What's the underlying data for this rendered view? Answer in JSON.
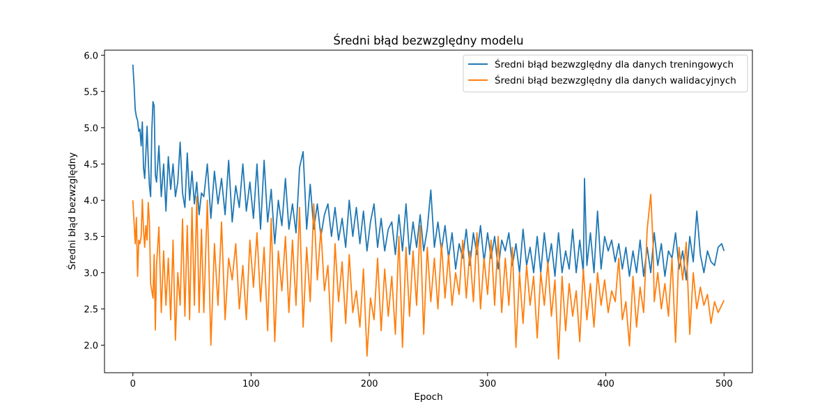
{
  "chart_data": {
    "type": "line",
    "title": "Średni błąd bezwzględny modelu",
    "xlabel": "Epoch",
    "ylabel": "Średni błąd bezwzględny",
    "xlim": [
      -24,
      524
    ],
    "ylim": [
      1.62,
      6.07
    ],
    "xticks": [
      0,
      100,
      200,
      300,
      400,
      500
    ],
    "yticks": [
      2.0,
      2.5,
      3.0,
      3.5,
      4.0,
      4.5,
      5.0,
      5.5,
      6.0
    ],
    "grid": false,
    "legend_position": "top-right",
    "series": [
      {
        "name": "Średni błąd bezwzględny dla danych treningowych",
        "color": "#1f77b4",
        "x": [
          0,
          1,
          2,
          3,
          4,
          5,
          6,
          7,
          8,
          9,
          10,
          11,
          12,
          13,
          14,
          15,
          16,
          17,
          18,
          19,
          20,
          22,
          24,
          26,
          28,
          30,
          32,
          34,
          36,
          38,
          40,
          42,
          44,
          46,
          48,
          50,
          52,
          54,
          56,
          58,
          60,
          63,
          66,
          69,
          72,
          75,
          78,
          81,
          84,
          87,
          90,
          93,
          96,
          99,
          102,
          105,
          108,
          111,
          114,
          117,
          120,
          123,
          126,
          129,
          132,
          135,
          138,
          141,
          144,
          147,
          150,
          153,
          156,
          159,
          162,
          165,
          168,
          171,
          174,
          177,
          180,
          183,
          186,
          189,
          192,
          195,
          198,
          201,
          204,
          207,
          210,
          213,
          216,
          219,
          222,
          225,
          228,
          231,
          234,
          237,
          240,
          243,
          246,
          249,
          252,
          255,
          258,
          261,
          264,
          267,
          270,
          273,
          276,
          279,
          282,
          285,
          288,
          291,
          294,
          297,
          300,
          303,
          306,
          309,
          312,
          315,
          318,
          321,
          324,
          327,
          330,
          333,
          336,
          339,
          342,
          345,
          348,
          351,
          354,
          357,
          360,
          363,
          366,
          369,
          372,
          375,
          378,
          381,
          382,
          384,
          387,
          390,
          393,
          396,
          399,
          402,
          405,
          408,
          411,
          414,
          417,
          420,
          423,
          426,
          429,
          432,
          435,
          438,
          441,
          444,
          447,
          450,
          453,
          456,
          459,
          462,
          465,
          468,
          471,
          474,
          477,
          480,
          483,
          486,
          489,
          492,
          495,
          498,
          500
        ],
        "values": [
          5.87,
          5.6,
          5.25,
          5.15,
          5.1,
          4.95,
          4.98,
          4.75,
          5.08,
          4.45,
          4.3,
          4.65,
          5.02,
          4.55,
          4.2,
          4.05,
          4.95,
          5.36,
          5.3,
          4.35,
          4.25,
          4.75,
          4.05,
          4.5,
          3.85,
          4.6,
          4.15,
          4.5,
          4.05,
          4.25,
          4.8,
          4.1,
          3.9,
          4.65,
          4.0,
          4.4,
          3.95,
          4.25,
          3.8,
          4.1,
          4.05,
          4.5,
          3.75,
          4.4,
          3.95,
          4.3,
          3.8,
          4.55,
          3.7,
          4.2,
          3.9,
          4.5,
          3.85,
          4.25,
          3.75,
          4.5,
          3.6,
          4.55,
          3.7,
          4.15,
          3.4,
          4.0,
          3.65,
          4.3,
          3.6,
          3.95,
          3.55,
          4.45,
          4.67,
          3.6,
          4.22,
          3.6,
          3.95,
          3.5,
          3.8,
          3.95,
          3.5,
          3.9,
          3.45,
          3.75,
          3.35,
          4.0,
          3.5,
          3.9,
          3.4,
          3.85,
          3.3,
          3.7,
          3.95,
          3.35,
          3.75,
          3.3,
          3.6,
          3.7,
          3.25,
          3.8,
          3.3,
          3.95,
          3.25,
          3.7,
          3.35,
          3.8,
          3.3,
          3.6,
          4.14,
          3.35,
          3.7,
          3.3,
          3.65,
          3.2,
          3.55,
          3.05,
          3.4,
          3.2,
          3.6,
          3.1,
          3.55,
          3.25,
          3.65,
          3.15,
          3.55,
          3.2,
          3.5,
          3.05,
          3.45,
          3.3,
          3.55,
          3.1,
          3.4,
          3.0,
          3.6,
          3.1,
          3.35,
          3.0,
          3.5,
          3.0,
          3.55,
          3.1,
          3.4,
          2.95,
          3.55,
          3.0,
          3.3,
          3.05,
          3.6,
          3.0,
          3.45,
          3.0,
          4.3,
          3.1,
          3.55,
          3.0,
          3.85,
          3.05,
          3.5,
          3.3,
          3.45,
          3.15,
          3.4,
          3.05,
          3.35,
          2.95,
          3.3,
          3.0,
          3.45,
          2.95,
          3.35,
          3.0,
          3.55,
          3.1,
          3.4,
          2.95,
          3.3,
          3.2,
          3.55,
          3.05,
          3.3,
          2.9,
          3.5,
          3.15,
          3.85,
          3.25,
          3.0,
          3.3,
          3.15,
          3.1,
          3.35,
          3.4,
          3.3
        ]
      },
      {
        "name": "Średni błąd bezwzględny dla danych walidacyjnych",
        "color": "#ff7f0e",
        "x": [
          0,
          1,
          2,
          3,
          4,
          5,
          6,
          7,
          8,
          9,
          10,
          11,
          12,
          13,
          14,
          15,
          16,
          17,
          18,
          19,
          20,
          22,
          24,
          26,
          28,
          30,
          32,
          34,
          36,
          38,
          40,
          42,
          44,
          46,
          48,
          50,
          52,
          54,
          56,
          58,
          60,
          63,
          66,
          69,
          72,
          75,
          78,
          81,
          84,
          87,
          90,
          93,
          96,
          99,
          102,
          105,
          108,
          111,
          114,
          117,
          120,
          123,
          126,
          129,
          132,
          135,
          138,
          141,
          144,
          147,
          150,
          153,
          156,
          159,
          162,
          165,
          168,
          171,
          174,
          177,
          180,
          183,
          186,
          189,
          192,
          195,
          198,
          201,
          204,
          207,
          210,
          213,
          216,
          219,
          222,
          225,
          228,
          231,
          234,
          237,
          240,
          243,
          246,
          249,
          252,
          255,
          258,
          261,
          264,
          267,
          270,
          273,
          276,
          279,
          282,
          285,
          288,
          291,
          294,
          297,
          300,
          303,
          306,
          309,
          312,
          315,
          318,
          321,
          324,
          327,
          330,
          333,
          336,
          339,
          342,
          345,
          348,
          351,
          354,
          357,
          360,
          363,
          366,
          369,
          372,
          375,
          378,
          381,
          384,
          387,
          390,
          393,
          396,
          399,
          402,
          405,
          408,
          411,
          414,
          417,
          420,
          423,
          426,
          429,
          432,
          435,
          438,
          440,
          441,
          444,
          447,
          450,
          453,
          456,
          459,
          462,
          465,
          468,
          471,
          474,
          477,
          480,
          483,
          486,
          489,
          492,
          495,
          498,
          500
        ],
        "values": [
          4.0,
          3.7,
          3.4,
          3.76,
          2.95,
          3.45,
          3.4,
          3.5,
          4.01,
          3.6,
          3.35,
          3.65,
          3.45,
          3.97,
          3.7,
          2.85,
          2.75,
          2.65,
          3.25,
          2.21,
          3.1,
          3.63,
          2.45,
          3.3,
          2.55,
          3.2,
          2.35,
          3.45,
          2.07,
          3.0,
          2.55,
          3.74,
          2.4,
          3.65,
          2.35,
          3.9,
          2.55,
          4.05,
          2.45,
          3.6,
          2.45,
          4.0,
          2.0,
          3.4,
          2.55,
          3.7,
          2.35,
          3.2,
          2.9,
          3.4,
          2.5,
          3.1,
          2.35,
          3.45,
          2.8,
          3.55,
          2.6,
          3.35,
          2.2,
          3.75,
          2.05,
          3.3,
          2.75,
          3.5,
          2.45,
          3.45,
          2.55,
          3.9,
          2.25,
          3.35,
          2.6,
          3.95,
          2.9,
          3.6,
          2.75,
          3.1,
          2.05,
          3.4,
          2.6,
          3.15,
          2.3,
          3.25,
          2.45,
          2.75,
          2.25,
          3.05,
          1.85,
          2.65,
          2.35,
          3.2,
          2.2,
          3.05,
          2.4,
          2.95,
          2.15,
          3.5,
          1.97,
          3.35,
          2.4,
          3.3,
          2.55,
          3.65,
          2.15,
          3.35,
          2.6,
          3.2,
          2.5,
          3.4,
          2.65,
          3.25,
          2.55,
          3.0,
          2.7,
          3.45,
          2.65,
          3.3,
          2.6,
          3.55,
          2.5,
          3.2,
          2.7,
          3.45,
          2.55,
          3.5,
          2.45,
          3.2,
          2.55,
          3.35,
          1.97,
          3.0,
          2.3,
          3.1,
          2.55,
          2.95,
          2.1,
          3.0,
          2.55,
          3.15,
          2.4,
          2.9,
          1.81,
          2.95,
          2.2,
          2.85,
          2.4,
          2.75,
          2.05,
          3.05,
          2.35,
          2.85,
          2.25,
          3.0,
          2.55,
          2.9,
          2.45,
          2.75,
          2.6,
          3.2,
          2.35,
          2.6,
          1.99,
          2.95,
          2.25,
          2.8,
          2.45,
          3.6,
          4.08,
          3.4,
          2.6,
          3.0,
          2.5,
          2.85,
          2.4,
          3.2,
          2.04,
          3.35,
          2.9,
          3.42,
          2.15,
          3.0,
          2.5,
          2.8,
          2.55,
          2.7,
          2.3,
          2.6,
          2.45,
          2.55,
          2.62
        ]
      }
    ]
  }
}
